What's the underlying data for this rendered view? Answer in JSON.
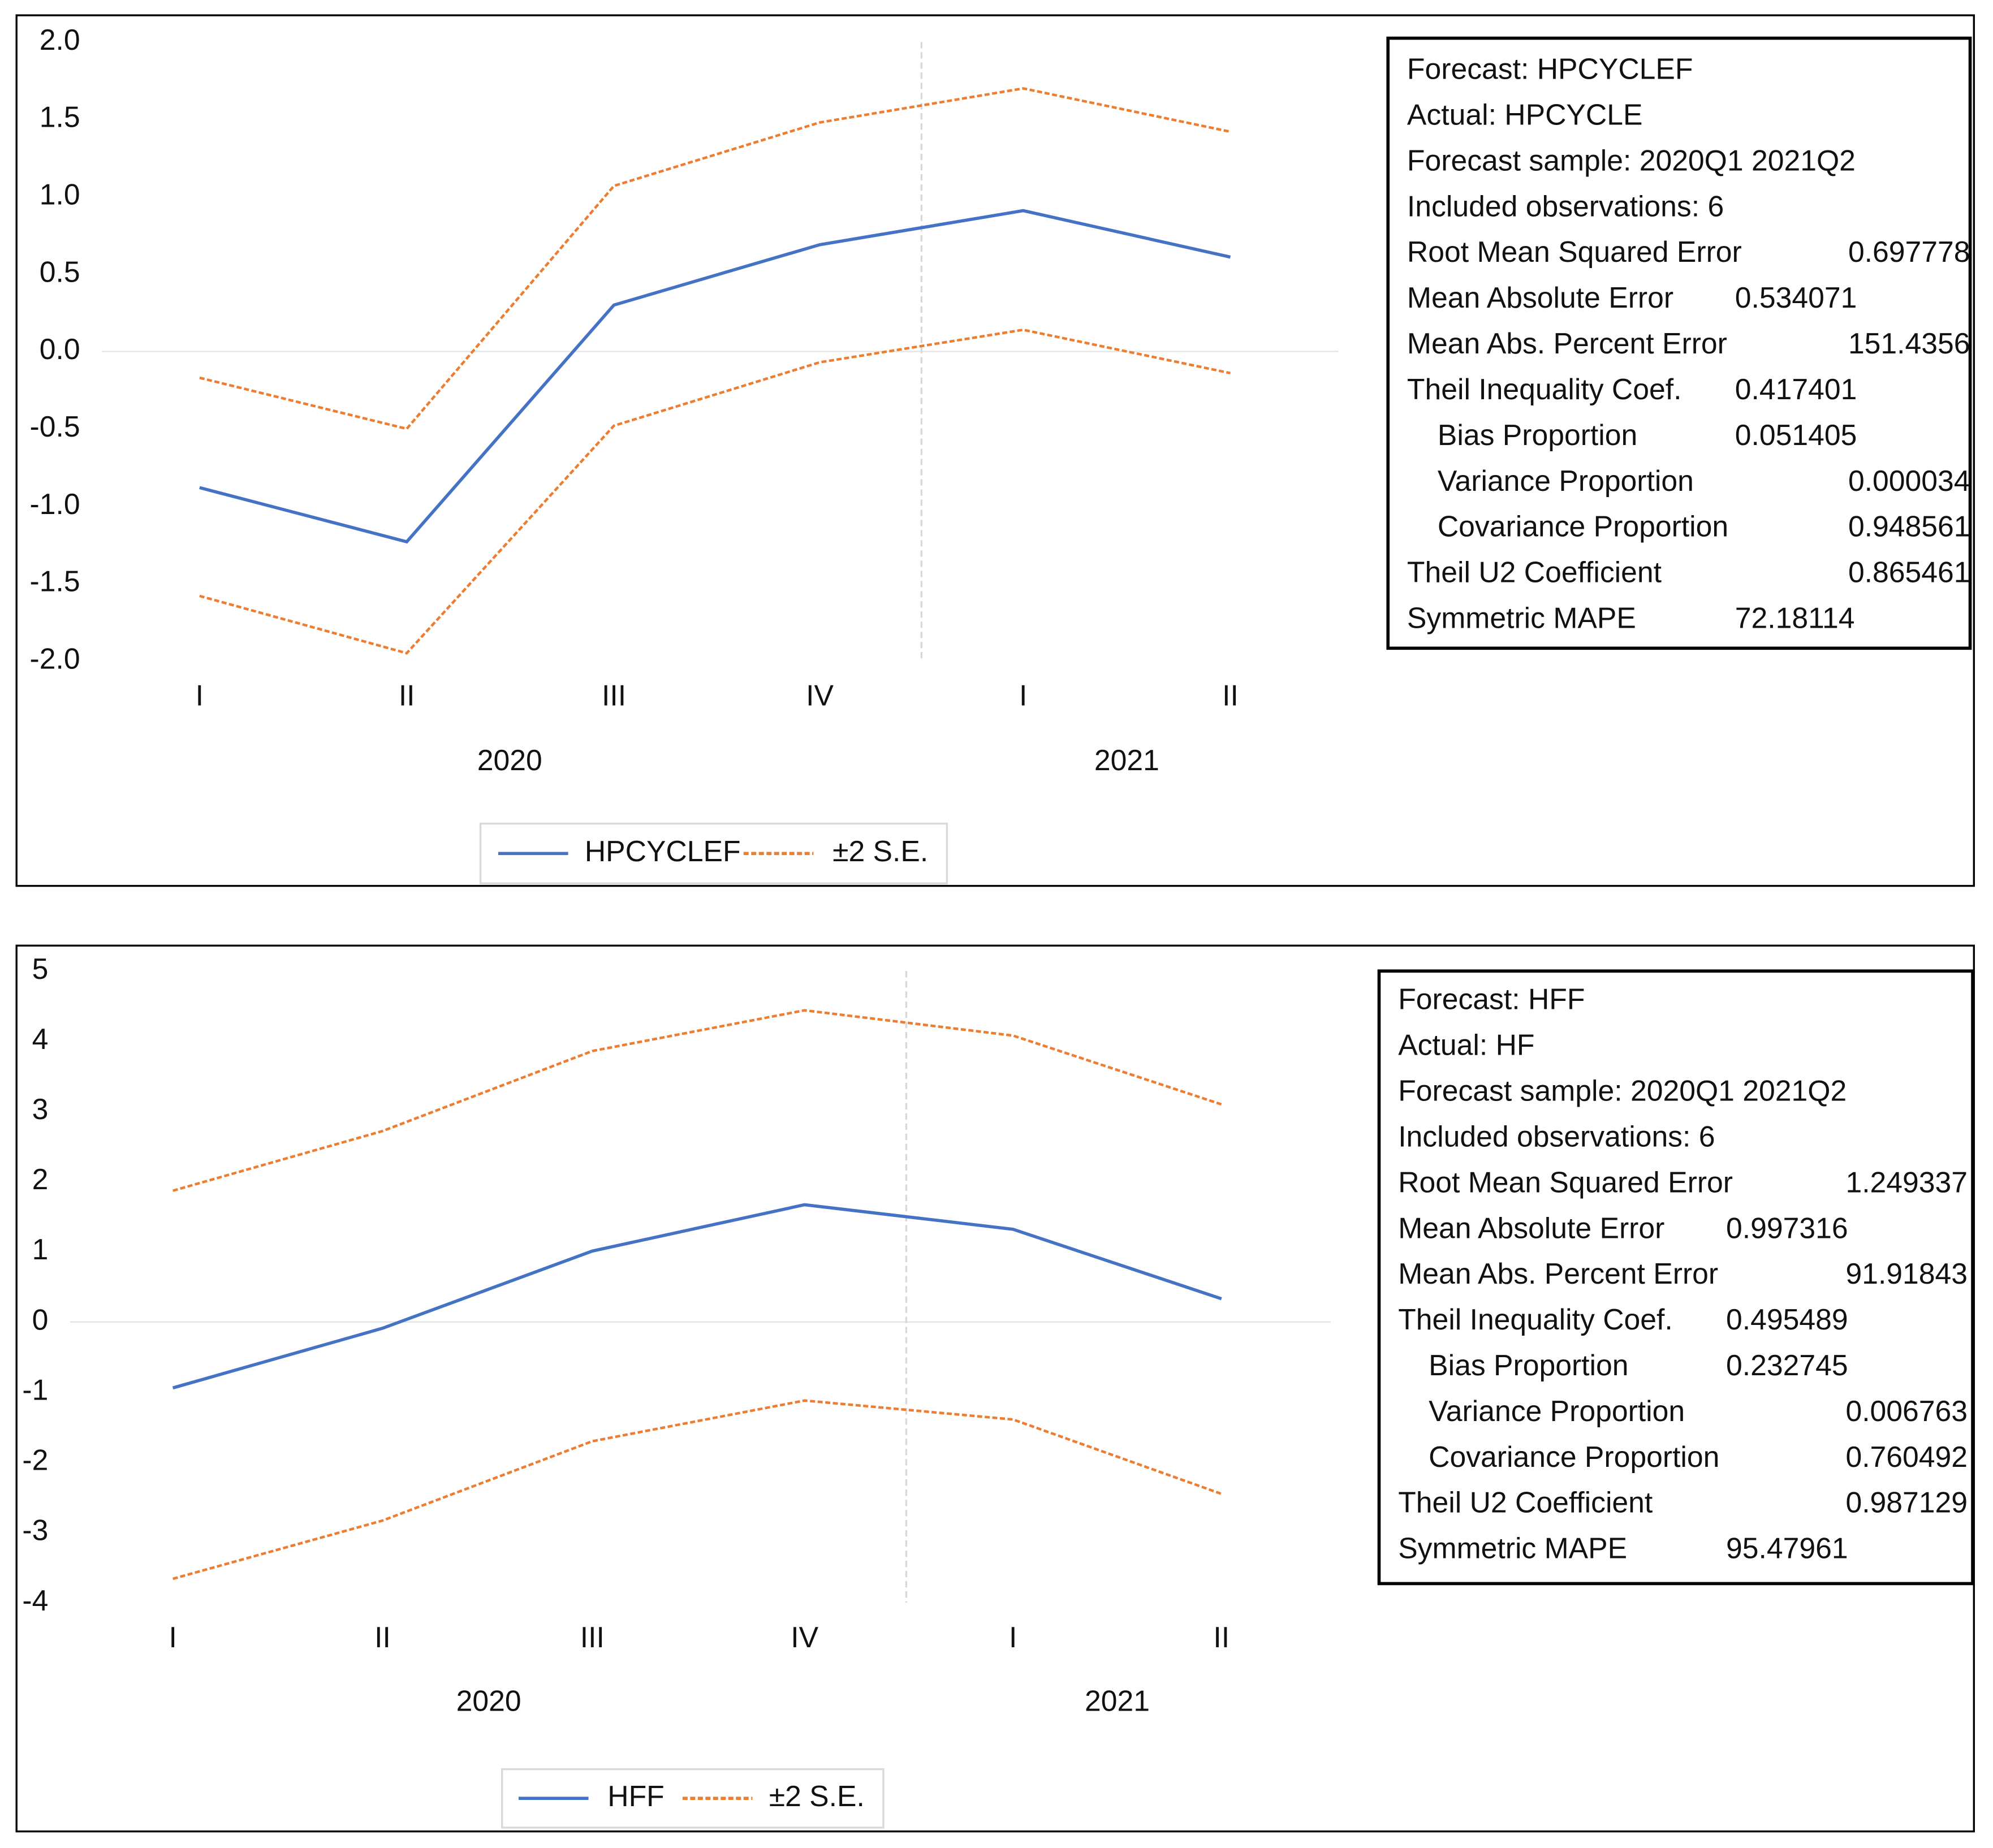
{
  "chart_data": [
    {
      "type": "line",
      "categories": [
        "I",
        "II",
        "III",
        "IV",
        "I",
        "II"
      ],
      "year_labels": [
        "2020",
        "2021"
      ],
      "series": [
        {
          "name": "HPCYCLEF",
          "color": "#4472c4",
          "values": [
            -0.88,
            -1.23,
            0.3,
            0.69,
            0.91,
            0.61
          ]
        },
        {
          "name": "±2 S.E.",
          "color": "#ed7d31",
          "dashed": true,
          "upper": [
            -0.17,
            -0.5,
            1.07,
            1.48,
            1.7,
            1.42
          ],
          "lower": [
            -1.58,
            -1.95,
            -0.48,
            -0.07,
            0.14,
            -0.14
          ]
        }
      ],
      "ylim": [
        -2,
        2
      ],
      "yticks": [
        {
          "value": 2,
          "label": "2.0"
        },
        1.5,
        {
          "value": 1,
          "label": "1.0"
        },
        0.5,
        {
          "value": 0,
          "label": "0.0"
        },
        -0.5,
        {
          "value": -1,
          "label": "-1.0"
        },
        -1.5,
        {
          "value": -2,
          "label": "-2.0"
        }
      ],
      "zero_line": true,
      "stats": [
        {
          "label": "Forecast: HPCYCLEF"
        },
        {
          "label": "Actual: HPCYCLE"
        },
        {
          "label": "Forecast sample: 2020Q1 2021Q2"
        },
        {
          "label": "Included observations: 6"
        },
        {
          "label": "Root Mean Squared Error",
          "value": 0.697778
        },
        {
          "label": "Mean Absolute Error",
          "value": 0.534071
        },
        {
          "label": "Mean Abs. Percent Error",
          "value": 151.4356
        },
        {
          "label": "Theil Inequality Coef.",
          "value": 0.417401
        },
        {
          "label": "Bias Proportion",
          "value": 0.051405,
          "indent": true
        },
        {
          "label": "Variance Proportion",
          "value": 3.4e-05,
          "indent": true
        },
        {
          "label": "Covariance Proportion",
          "value": 0.948561,
          "indent": true
        },
        {
          "label": "Theil U2 Coefficient",
          "value": 0.865461
        },
        {
          "label": "Symmetric MAPE",
          "value": 72.18114
        }
      ]
    },
    {
      "type": "line",
      "categories": [
        "I",
        "II",
        "III",
        "IV",
        "I",
        "II"
      ],
      "year_labels": [
        "2020",
        "2021"
      ],
      "series": [
        {
          "name": "HFF",
          "color": "#4472c4",
          "values": [
            -0.94,
            -0.09,
            1.01,
            1.67,
            1.32,
            0.33
          ]
        },
        {
          "name": "±2 S.E.",
          "color": "#ed7d31",
          "dashed": true,
          "upper": [
            1.87,
            2.72,
            3.86,
            4.44,
            4.08,
            3.1
          ],
          "lower": [
            -3.66,
            -2.83,
            -1.7,
            -1.12,
            -1.39,
            -2.45
          ]
        }
      ],
      "ylim": [
        -4,
        5
      ],
      "yticks": [
        5,
        4,
        3,
        2,
        1,
        0,
        -1,
        -2,
        -3,
        -4
      ],
      "zero_line": true,
      "stats": [
        {
          "label": "Forecast: HFF"
        },
        {
          "label": "Actual: HF"
        },
        {
          "label": "Forecast sample: 2020Q1 2021Q2"
        },
        {
          "label": "Included observations: 6"
        },
        {
          "label": "Root Mean Squared Error",
          "value": 1.249337
        },
        {
          "label": "Mean Absolute Error",
          "value": 0.997316
        },
        {
          "label": "Mean Abs. Percent Error",
          "value": 91.91843
        },
        {
          "label": "Theil Inequality Coef.",
          "value": 0.495489
        },
        {
          "label": "Bias Proportion",
          "value": 0.232745,
          "indent": true
        },
        {
          "label": "Variance Proportion",
          "value": 0.006763,
          "indent": true
        },
        {
          "label": "Covariance Proportion",
          "value": 0.760492,
          "indent": true
        },
        {
          "label": "Theil U2 Coefficient",
          "value": 0.987129
        },
        {
          "label": "Symmetric MAPE",
          "value": 95.47961
        }
      ]
    }
  ]
}
